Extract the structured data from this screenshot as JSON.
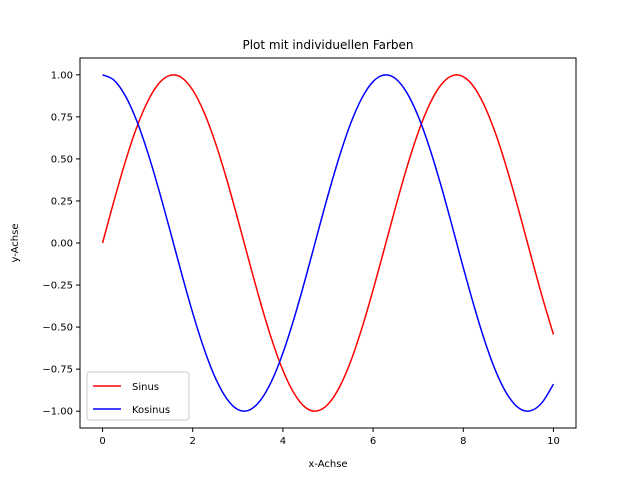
{
  "chart_data": {
    "type": "line",
    "title": "Plot mit individuellen Farben",
    "xlabel": "x-Achse",
    "ylabel": "y-Achse",
    "xlim": [
      -0.5,
      10.5
    ],
    "ylim": [
      -1.1,
      1.1
    ],
    "grid": false,
    "legend_position": "lower-left",
    "x_ticks": [
      0,
      2,
      4,
      6,
      8,
      10
    ],
    "x_tick_labels": [
      "0",
      "2",
      "4",
      "6",
      "8",
      "10"
    ],
    "y_ticks": [
      1.0,
      0.75,
      0.5,
      0.25,
      0.0,
      -0.25,
      -0.5,
      -0.75,
      -1.0
    ],
    "y_tick_labels": [
      "1.00",
      "0.75",
      "0.50",
      "0.25",
      "0.00",
      "−0.25",
      "−0.50",
      "−0.75",
      "−1.00"
    ],
    "x": [
      0,
      0.25,
      0.5,
      0.75,
      1,
      1.25,
      1.5,
      1.75,
      2,
      2.25,
      2.5,
      2.75,
      3,
      3.25,
      3.5,
      3.75,
      4,
      4.25,
      4.5,
      4.75,
      5,
      5.25,
      5.5,
      5.75,
      6,
      6.25,
      6.5,
      6.75,
      7,
      7.25,
      7.5,
      7.75,
      8,
      8.25,
      8.5,
      8.75,
      9,
      9.25,
      9.5,
      9.75,
      10
    ],
    "series": [
      {
        "name": "Sinus",
        "color": "#ff0000",
        "values": [
          0.0,
          0.247,
          0.479,
          0.682,
          0.841,
          0.949,
          0.997,
          0.984,
          0.909,
          0.778,
          0.598,
          0.382,
          0.141,
          -0.108,
          -0.351,
          -0.572,
          -0.757,
          -0.895,
          -0.978,
          -0.999,
          -0.959,
          -0.859,
          -0.706,
          -0.508,
          -0.279,
          -0.033,
          0.215,
          0.45,
          0.657,
          0.823,
          0.938,
          0.994,
          0.989,
          0.923,
          0.798,
          0.625,
          0.412,
          0.174,
          -0.075,
          -0.319,
          -0.544
        ]
      },
      {
        "name": "Kosinus",
        "color": "#0000ff",
        "values": [
          1.0,
          0.969,
          0.878,
          0.732,
          0.54,
          0.315,
          0.071,
          -0.178,
          -0.416,
          -0.628,
          -0.801,
          -0.924,
          -0.99,
          -0.994,
          -0.936,
          -0.821,
          -0.654,
          -0.446,
          -0.211,
          0.038,
          0.284,
          0.512,
          0.709,
          0.861,
          0.96,
          0.999,
          0.977,
          0.893,
          0.754,
          0.568,
          0.347,
          0.104,
          -0.146,
          -0.385,
          -0.602,
          -0.781,
          -0.911,
          -0.985,
          -0.997,
          -0.948,
          -0.839
        ]
      }
    ]
  }
}
